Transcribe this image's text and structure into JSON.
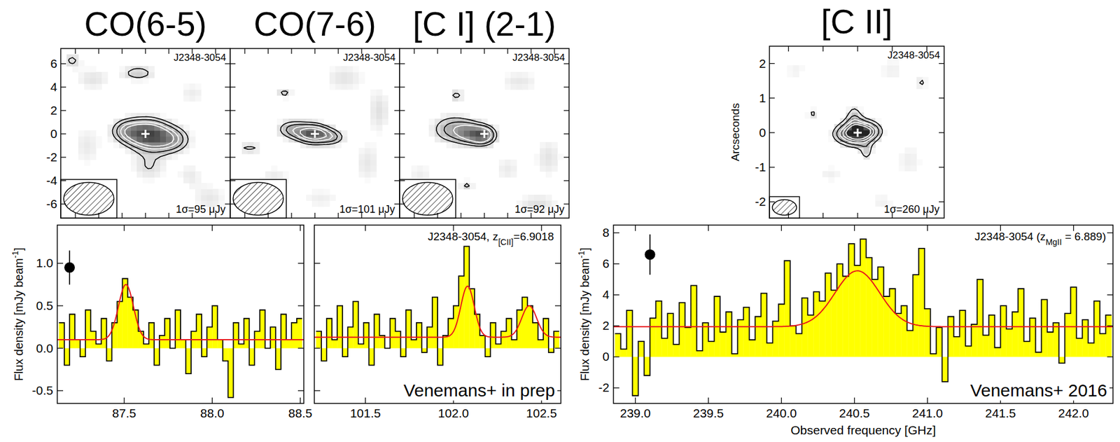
{
  "chart_data": [
    {
      "type": "image",
      "title": "CO(6-5)",
      "label": "J2348-3054",
      "noise_label": "1σ=95 μJy",
      "xlim": [
        -7.25,
        7.25
      ],
      "ylim": [
        -7.2,
        7.3
      ],
      "xticks": [
        -6,
        -4,
        -2,
        0,
        2,
        4,
        6
      ],
      "yticks": [
        -6,
        -4,
        -2,
        0,
        2,
        4,
        6
      ],
      "tick_labels": "y",
      "pixel_size": 0.5,
      "gray_range": [
        1,
        9
      ],
      "contours": [
        2,
        3,
        4,
        5
      ],
      "components": [
        {
          "x": 0.1,
          "y": 0.0,
          "sx": 1.3,
          "sy": 0.9,
          "peak": 7.0
        },
        {
          "x": 2.2,
          "y": -0.5,
          "sx": 1.2,
          "sy": 0.8,
          "peak": 3.8
        },
        {
          "x": -1.8,
          "y": 0.3,
          "sx": 0.9,
          "sy": 0.7,
          "peak": 2.6
        },
        {
          "x": 0.3,
          "y": -2.8,
          "sx": 1.2,
          "sy": 1.0,
          "peak": 2.0
        },
        {
          "x": -0.6,
          "y": 5.2,
          "sx": 1.1,
          "sy": 0.5,
          "peak": 2.7
        },
        {
          "x": -4.5,
          "y": 4.7,
          "sx": 1.2,
          "sy": 0.8,
          "peak": 1.8
        },
        {
          "x": 4.0,
          "y": 3.5,
          "sx": 1.0,
          "sy": 0.8,
          "peak": 1.5
        },
        {
          "x": -5.0,
          "y": -1.0,
          "sx": 1.0,
          "sy": 1.5,
          "peak": 1.6
        },
        {
          "x": 5.5,
          "y": -5.5,
          "sx": 1.2,
          "sy": 1.0,
          "peak": 1.7
        },
        {
          "x": 3.8,
          "y": -3.5,
          "sx": 0.8,
          "sy": 0.8,
          "peak": 1.5
        },
        {
          "x": -6.3,
          "y": 6.3,
          "sx": 0.6,
          "sy": 0.5,
          "peak": 2.2
        }
      ],
      "beam": {
        "major": 4.3,
        "minor": 2.8
      },
      "source_position": {
        "x": 0,
        "y": 0
      }
    },
    {
      "type": "image",
      "title": "CO(7-6)",
      "label": "J2348-3054",
      "noise_label": "1σ=101 μJy",
      "xlim": [
        -7.25,
        7.25
      ],
      "ylim": [
        -7.2,
        7.3
      ],
      "xticks": [
        -6,
        -4,
        -2,
        0,
        2,
        4,
        6
      ],
      "yticks": [
        -6,
        -4,
        -2,
        0,
        2,
        4,
        6
      ],
      "tick_labels": false,
      "pixel_size": 0.5,
      "gray_range": [
        1,
        8
      ],
      "contours": [
        2,
        3,
        4,
        5
      ],
      "components": [
        {
          "x": -0.1,
          "y": 0.0,
          "sx": 1.0,
          "sy": 0.6,
          "peak": 6.0
        },
        {
          "x": -2.0,
          "y": 0.4,
          "sx": 1.0,
          "sy": 0.6,
          "peak": 3.0
        },
        {
          "x": 1.6,
          "y": -0.3,
          "sx": 0.8,
          "sy": 0.5,
          "peak": 2.5
        },
        {
          "x": -2.6,
          "y": 3.5,
          "sx": 0.5,
          "sy": 0.35,
          "peak": 2.4
        },
        {
          "x": -5.6,
          "y": -1.2,
          "sx": 0.9,
          "sy": 0.3,
          "peak": 2.3
        },
        {
          "x": 2.5,
          "y": 4.8,
          "sx": 1.5,
          "sy": 1.0,
          "peak": 1.7
        },
        {
          "x": 4.5,
          "y": -2.5,
          "sx": 1.0,
          "sy": 1.5,
          "peak": 1.6
        },
        {
          "x": -3.5,
          "y": -3.8,
          "sx": 1.2,
          "sy": 1.0,
          "peak": 1.5
        },
        {
          "x": 5.5,
          "y": 2.0,
          "sx": 0.8,
          "sy": 1.5,
          "peak": 1.8
        },
        {
          "x": 0.5,
          "y": -5.5,
          "sx": 1.5,
          "sy": 0.8,
          "peak": 1.4
        }
      ],
      "beam": {
        "major": 4.3,
        "minor": 2.8
      },
      "source_position": {
        "x": 0,
        "y": 0
      }
    },
    {
      "type": "image",
      "title": "[C I] (2-1)",
      "label": "J2348-3054",
      "noise_label": "1σ=92 μJy",
      "xlim": [
        -7.25,
        7.25
      ],
      "ylim": [
        -7.2,
        7.3
      ],
      "xticks": [
        -6,
        -4,
        -2,
        0,
        2,
        4,
        6
      ],
      "yticks": [
        -6,
        -4,
        -2,
        0,
        2,
        4,
        6
      ],
      "tick_labels": false,
      "pixel_size": 0.5,
      "gray_range": [
        1,
        8
      ],
      "contours": [
        2,
        3,
        4
      ],
      "components": [
        {
          "x": -0.1,
          "y": -0.1,
          "sx": 0.8,
          "sy": 0.6,
          "peak": 5.5
        },
        {
          "x": -2.8,
          "y": 0.4,
          "sx": 1.3,
          "sy": 0.9,
          "peak": 3.3
        },
        {
          "x": -1.4,
          "y": 0.1,
          "sx": 0.8,
          "sy": 0.7,
          "peak": 2.5
        },
        {
          "x": -2.4,
          "y": 3.3,
          "sx": 0.5,
          "sy": 0.35,
          "peak": 2.4
        },
        {
          "x": -1.5,
          "y": -4.4,
          "sx": 0.45,
          "sy": 0.35,
          "peak": 2.3
        },
        {
          "x": 3.0,
          "y": 4.5,
          "sx": 1.5,
          "sy": 0.8,
          "peak": 1.6
        },
        {
          "x": 5.5,
          "y": -2.0,
          "sx": 1.0,
          "sy": 1.5,
          "peak": 1.7
        },
        {
          "x": 4.5,
          "y": -6.0,
          "sx": 1.5,
          "sy": 0.7,
          "peak": 1.8
        },
        {
          "x": -5.5,
          "y": -3.5,
          "sx": 1.0,
          "sy": 1.0,
          "peak": 1.4
        },
        {
          "x": 2.0,
          "y": -3.0,
          "sx": 1.0,
          "sy": 1.0,
          "peak": 1.5
        }
      ],
      "beam": {
        "major": 4.3,
        "minor": 2.8
      },
      "source_position": {
        "x": 0,
        "y": 0
      }
    },
    {
      "type": "image",
      "title": "[C II]",
      "label": "J2348-3054",
      "noise_label": "1σ=260 μJy",
      "ylabel": "Arcseconds",
      "xlim": [
        -2.55,
        2.5
      ],
      "ylim": [
        -2.47,
        2.5
      ],
      "xticks": [
        -2,
        -1,
        0,
        1,
        2
      ],
      "yticks": [
        -2,
        -1,
        0,
        1,
        2
      ],
      "tick_labels": "y",
      "pixel_size": 0.17,
      "gray_range": [
        1,
        12
      ],
      "contours": [
        2,
        4,
        6,
        8,
        10
      ],
      "components": [
        {
          "x": 0.0,
          "y": 0.0,
          "sx": 0.3,
          "sy": 0.22,
          "peak": 14
        },
        {
          "x": -0.1,
          "y": 0.45,
          "sx": 0.15,
          "sy": 0.25,
          "peak": 3.0
        },
        {
          "x": 0.25,
          "y": -0.55,
          "sx": 0.12,
          "sy": 0.18,
          "peak": 2.8
        },
        {
          "x": 0.4,
          "y": 0.05,
          "sx": 0.2,
          "sy": 0.15,
          "peak": 4
        },
        {
          "x": -0.45,
          "y": -0.05,
          "sx": 0.2,
          "sy": 0.15,
          "peak": 3
        },
        {
          "x": -1.3,
          "y": 0.55,
          "sx": 0.12,
          "sy": 0.1,
          "peak": 2.4
        },
        {
          "x": 1.85,
          "y": 1.45,
          "sx": 0.1,
          "sy": 0.12,
          "peak": 2.4
        },
        {
          "x": 1.0,
          "y": 1.8,
          "sx": 0.3,
          "sy": 0.3,
          "peak": 1.5
        },
        {
          "x": -0.8,
          "y": -1.2,
          "sx": 0.3,
          "sy": 0.2,
          "peak": 1.5
        },
        {
          "x": 1.5,
          "y": -0.8,
          "sx": 0.3,
          "sy": 0.4,
          "peak": 1.6
        },
        {
          "x": -1.8,
          "y": 1.8,
          "sx": 0.25,
          "sy": 0.25,
          "peak": 1.4
        },
        {
          "x": 0.7,
          "y": -2.0,
          "sx": 0.3,
          "sy": 0.2,
          "peak": 1.5
        }
      ],
      "beam": {
        "major": 0.7,
        "minor": 0.45
      },
      "source_position": {
        "x": 0,
        "y": 0
      }
    },
    {
      "type": "histogram",
      "color": "#ffff00",
      "title": {
        "text": "J2348-3054, z",
        "subscript": "[CII]",
        "suffix": "=6.9018"
      },
      "ylabel": {
        "text": "Flux density [mJy beam",
        "superscript": "-1",
        "suffix": "]"
      },
      "annotation": "Venemans+ in prep",
      "ylim": [
        -0.65,
        1.45
      ],
      "yticks": [
        -0.5,
        {
          "value": 0,
          "label": "0.0"
        },
        0.5,
        {
          "value": 1,
          "label": "1.0"
        }
      ],
      "tick_labels": true,
      "error_bar": {
        "x": 87.19,
        "value": 0.95,
        "error": 0.2
      },
      "panels": [
        {
          "xlim": [
            87.12,
            88.52
          ],
          "xticks": [
            87.5,
            {
              "value": 88,
              "label": "88.0"
            },
            88.5
          ],
          "bins": [
            87.13,
            87.16,
            87.19,
            87.22,
            87.25,
            87.28,
            87.31,
            87.34,
            87.37,
            87.4,
            87.43,
            87.46,
            87.49,
            87.52,
            87.55,
            87.58,
            87.61,
            87.64,
            87.67,
            87.7,
            87.73,
            87.76,
            87.79,
            87.82,
            87.85,
            87.88,
            87.91,
            87.94,
            87.97,
            88.0,
            88.03,
            88.06,
            88.09,
            88.12,
            88.15,
            88.18,
            88.21,
            88.24,
            88.27,
            88.3,
            88.33,
            88.36,
            88.39,
            88.42,
            88.45,
            88.48,
            88.51
          ],
          "values": [
            0.3,
            -0.2,
            0.4,
            0.1,
            -0.1,
            0.45,
            0.2,
            0.05,
            0.35,
            -0.15,
            0.3,
            0.55,
            0.82,
            0.6,
            0.45,
            0.2,
            0.05,
            0.3,
            -0.2,
            0.15,
            0.35,
            0.0,
            0.45,
            0.1,
            -0.3,
            0.2,
            0.4,
            -0.1,
            0.25,
            0.5,
            0.1,
            -0.15,
            -0.58,
            0.3,
            0.05,
            0.35,
            -0.2,
            0.2,
            0.45,
            0.0,
            0.25,
            -0.25,
            0.4,
            0.1,
            0.3,
            0.35
          ],
          "fit": {
            "color": "#e8151b",
            "continuum": 0.1,
            "lines": [
              {
                "center": 87.51,
                "amplitude": 0.65,
                "fwhm": 0.1
              }
            ]
          }
        },
        {
          "xlim": [
            101.21,
            102.61
          ],
          "xticks": [
            101.5,
            {
              "value": 102,
              "label": "102.0"
            },
            102.5
          ],
          "bins": [
            101.22,
            101.25,
            101.28,
            101.31,
            101.34,
            101.37,
            101.4,
            101.43,
            101.46,
            101.49,
            101.52,
            101.55,
            101.58,
            101.61,
            101.64,
            101.67,
            101.7,
            101.73,
            101.76,
            101.79,
            101.82,
            101.85,
            101.88,
            101.91,
            101.94,
            101.97,
            102.0,
            102.03,
            102.06,
            102.09,
            102.12,
            102.15,
            102.18,
            102.21,
            102.24,
            102.27,
            102.3,
            102.33,
            102.36,
            102.39,
            102.42,
            102.45,
            102.48,
            102.51,
            102.54,
            102.57,
            102.6
          ],
          "values": [
            0.2,
            -0.15,
            0.35,
            0.1,
            0.5,
            -0.1,
            0.25,
            0.55,
            0.05,
            0.3,
            -0.2,
            0.4,
            0.15,
            0.0,
            0.35,
            0.2,
            -0.1,
            0.45,
            0.1,
            0.3,
            -0.05,
            0.25,
            0.6,
            -0.2,
            0.15,
            0.35,
            0.5,
            0.85,
            1.2,
            0.7,
            0.4,
            0.15,
            -0.1,
            0.3,
            0.05,
            0.2,
            0.35,
            0.1,
            0.45,
            0.6,
            0.5,
            0.3,
            0.1,
            0.35,
            -0.05,
            0.2
          ],
          "fit": {
            "color": "#e8151b",
            "continuum": 0.13,
            "lines": [
              {
                "center": 102.08,
                "amplitude": 0.6,
                "fwhm": 0.09
              },
              {
                "center": 102.43,
                "amplitude": 0.37,
                "fwhm": 0.1
              }
            ]
          }
        }
      ]
    },
    {
      "type": "histogram",
      "color": "#ffff00",
      "title": {
        "text": "J2348-3054 (z",
        "subscript": "MgII",
        "suffix": " = 6.889)"
      },
      "ylabel": {
        "text": "Flux density [mJy beam",
        "superscript": "-1",
        "suffix": "]"
      },
      "xlabel": "Observed frequency [GHz]",
      "annotation": "Venemans+ 2016",
      "ylim": [
        -3,
        8.5
      ],
      "yticks": [
        -2,
        0,
        2,
        4,
        6,
        8
      ],
      "tick_labels": true,
      "error_bar": {
        "x": 239.1,
        "value": 6.6,
        "error": 1.3
      },
      "panels": [
        {
          "xlim": [
            238.85,
            242.27
          ],
          "xticks": [
            {
              "value": 239,
              "label": "239.0"
            },
            239.5,
            {
              "value": 240,
              "label": "240.0"
            },
            240.5,
            {
              "value": 241,
              "label": "241.0"
            },
            241.5,
            {
              "value": 242,
              "label": "242.0"
            }
          ],
          "bins": [
            238.86,
            238.9,
            238.94,
            238.98,
            239.02,
            239.06,
            239.1,
            239.14,
            239.18,
            239.22,
            239.26,
            239.3,
            239.34,
            239.38,
            239.42,
            239.46,
            239.5,
            239.54,
            239.58,
            239.62,
            239.66,
            239.7,
            239.74,
            239.78,
            239.82,
            239.86,
            239.9,
            239.94,
            239.98,
            240.02,
            240.06,
            240.1,
            240.14,
            240.18,
            240.22,
            240.26,
            240.3,
            240.34,
            240.38,
            240.42,
            240.46,
            240.5,
            240.54,
            240.58,
            240.62,
            240.66,
            240.7,
            240.74,
            240.78,
            240.82,
            240.86,
            240.9,
            240.94,
            240.98,
            241.02,
            241.06,
            241.1,
            241.14,
            241.18,
            241.22,
            241.26,
            241.3,
            241.34,
            241.38,
            241.42,
            241.46,
            241.5,
            241.54,
            241.58,
            241.62,
            241.66,
            241.7,
            241.74,
            241.78,
            241.82,
            241.86,
            241.9,
            241.94,
            241.98,
            242.02,
            242.06,
            242.1,
            242.14,
            242.18,
            242.22,
            242.26
          ],
          "values": [
            1.5,
            0.5,
            3.0,
            -2.5,
            1.0,
            -1.2,
            2.5,
            3.6,
            1.2,
            2.8,
            0.8,
            3.5,
            1.9,
            4.6,
            0.4,
            2.2,
            1.0,
            3.9,
            1.6,
            2.9,
            0.2,
            2.4,
            3.2,
            1.1,
            2.6,
            4.1,
            0.9,
            2.3,
            3.4,
            6.2,
            2.0,
            1.5,
            3.8,
            2.7,
            4.2,
            3.6,
            5.4,
            4.3,
            6.0,
            5.2,
            7.3,
            5.9,
            7.6,
            6.4,
            5.0,
            5.8,
            3.9,
            4.4,
            2.8,
            3.3,
            1.7,
            5.3,
            7.0,
            3.1,
            0.2,
            1.9,
            -1.6,
            2.6,
            1.3,
            3.0,
            0.7,
            2.1,
            5.0,
            1.4,
            2.7,
            0.6,
            3.3,
            1.8,
            2.9,
            4.4,
            1.0,
            2.5,
            0.3,
            3.7,
            1.6,
            2.2,
            -0.4,
            2.8,
            4.5,
            1.2,
            2.4,
            0.9,
            3.6,
            1.5,
            2.7
          ],
          "fit": {
            "color": "#e8151b",
            "continuum": 1.95,
            "lines": [
              {
                "center": 240.52,
                "amplitude": 3.6,
                "fwhm": 0.36
              }
            ]
          }
        }
      ]
    }
  ]
}
